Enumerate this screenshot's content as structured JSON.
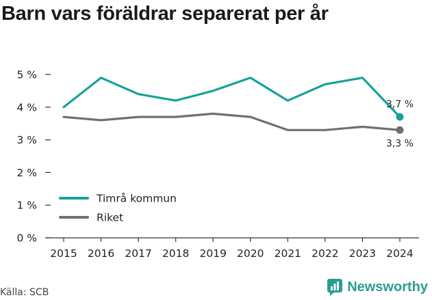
{
  "title": "Barn vars föräldrar separerat per år",
  "source": "Källa: SCB",
  "brand": {
    "name": "Newsworthy",
    "icon": "newsworthy-logo-icon",
    "color": "#2a9d8f"
  },
  "chart_data": {
    "type": "line",
    "title": "Barn vars föräldrar separerat per år",
    "xlabel": "",
    "ylabel": "",
    "categories": [
      "2015",
      "2016",
      "2017",
      "2018",
      "2019",
      "2020",
      "2021",
      "2022",
      "2023",
      "2024"
    ],
    "series": [
      {
        "name": "Timrå kommun",
        "color": "#15a398",
        "values": [
          4.0,
          4.9,
          4.4,
          4.2,
          4.5,
          4.9,
          4.2,
          4.7,
          4.9,
          3.7
        ],
        "end_label": "3,7 %"
      },
      {
        "name": "Riket",
        "color": "#6e6e75",
        "values": [
          3.7,
          3.6,
          3.7,
          3.7,
          3.8,
          3.7,
          3.3,
          3.3,
          3.4,
          3.3
        ],
        "end_label": "3,3 %"
      }
    ],
    "y_ticks": [
      0,
      1,
      2,
      3,
      4,
      5
    ],
    "y_tick_labels": [
      "0 %",
      "1 %",
      "2 %",
      "3 %",
      "4 %",
      "5 %"
    ],
    "ylim": [
      0,
      5
    ],
    "grid": false,
    "legend": "bottom-left"
  }
}
